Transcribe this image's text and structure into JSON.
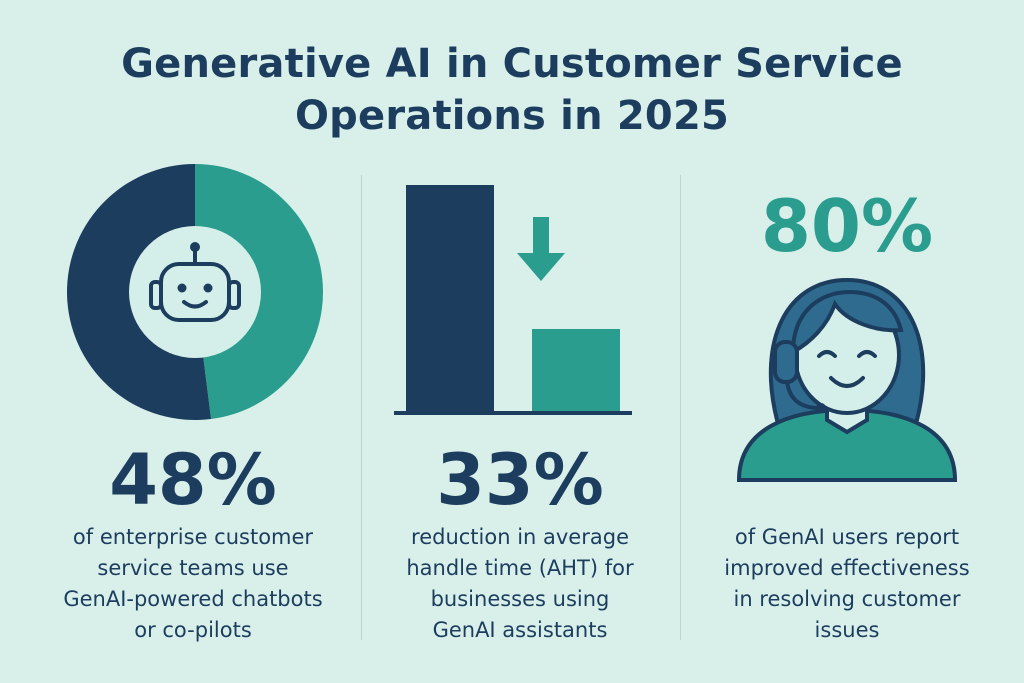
{
  "title_lines": [
    "Generative AI in Customer Service",
    "Operations in 2025"
  ],
  "colors": {
    "background": "#d8efea",
    "navy": "#1c3d5e",
    "teal": "#2a9d8f",
    "light": "#d4efe9"
  },
  "stats": [
    {
      "value": "48%",
      "lines": [
        "of enterprise customer",
        "service teams use",
        "GenAI-powered chatbots",
        "or co-pilots"
      ],
      "icon": "robot-icon",
      "donut_share": 0.48
    },
    {
      "value": "33%",
      "lines": [
        "reduction in average",
        "handle time (AHT) for",
        "businesses using",
        "GenAI assistants"
      ],
      "icon": "down-arrow-icon",
      "bar_reduction": 0.33
    },
    {
      "value": "80%",
      "lines": [
        "of GenAI users report",
        "improved effectiveness",
        "in resolving customer",
        "issues"
      ],
      "icon": "support-agent-icon"
    }
  ]
}
